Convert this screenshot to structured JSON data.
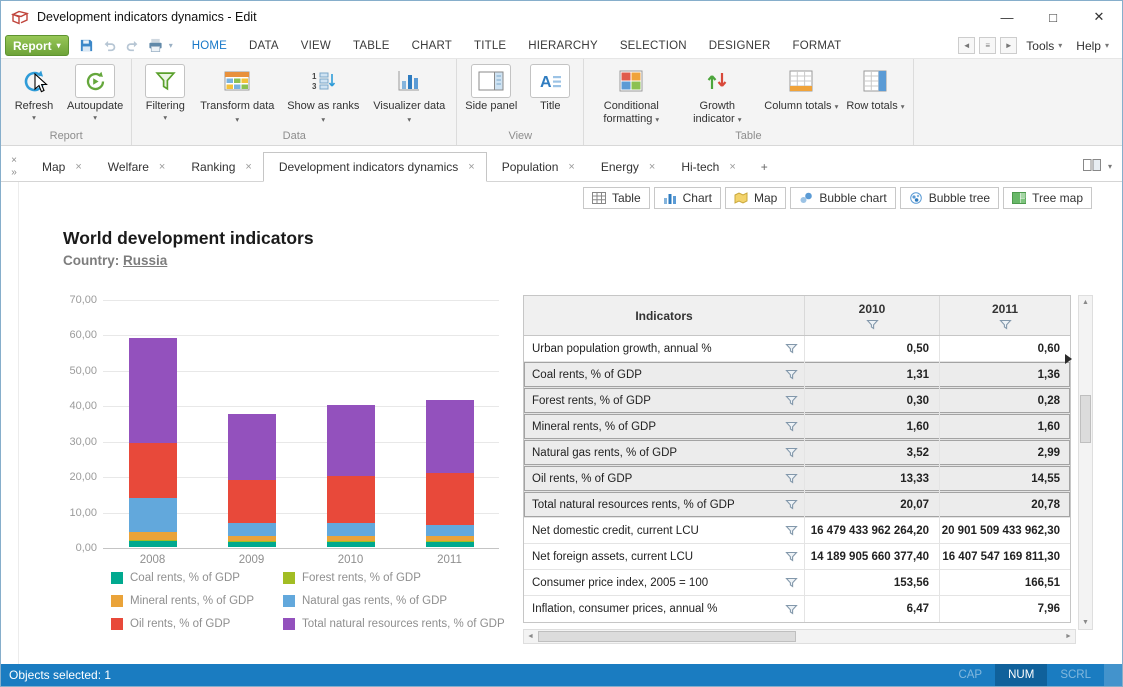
{
  "window": {
    "title": "Development indicators dynamics - Edit"
  },
  "icons": {
    "dropdown": "▾",
    "close": "×",
    "chevrons": "»",
    "back": "◄",
    "forward": "►",
    "list": "≡",
    "minimize": "—",
    "maximize": "□",
    "window_close": "✕",
    "scroll_up": "▲",
    "scroll_down": "▼",
    "scroll_left": "◄",
    "scroll_right": "►"
  },
  "menu": {
    "report_label": "Report",
    "tabs": [
      {
        "label": "HOME",
        "active": true
      },
      {
        "label": "DATA"
      },
      {
        "label": "VIEW"
      },
      {
        "label": "TABLE"
      },
      {
        "label": "CHART"
      },
      {
        "label": "TITLE"
      },
      {
        "label": "HIERARCHY"
      },
      {
        "label": "SELECTION"
      },
      {
        "label": "DESIGNER"
      },
      {
        "label": "FORMAT"
      }
    ],
    "tools_label": "Tools",
    "help_label": "Help"
  },
  "ribbon_groups": [
    {
      "label": "Report",
      "buttons": [
        {
          "label": "Refresh",
          "icon": "refresh-icon",
          "dropdown": true,
          "dd_below": true
        },
        {
          "label": "Autoupdate",
          "icon": "autoupdate-icon",
          "dropdown": true,
          "dd_below": true,
          "boxed": true
        }
      ]
    },
    {
      "label": "Data",
      "buttons": [
        {
          "label": "Filtering",
          "icon": "filtering-icon",
          "dropdown": true,
          "dd_below": true,
          "boxed": true
        },
        {
          "label": "Transform data",
          "icon": "transform-data-icon",
          "dropdown": true
        },
        {
          "label": "Show as ranks",
          "icon": "show-as-ranks-icon",
          "dropdown": true
        },
        {
          "label": "Visualizer data",
          "icon": "visualizer-data-icon",
          "dropdown": true
        }
      ]
    },
    {
      "label": "View",
      "buttons": [
        {
          "label": "Side panel",
          "icon": "side-panel-icon",
          "boxed": true
        },
        {
          "label": "Title",
          "icon": "title-icon",
          "boxed": true
        }
      ]
    },
    {
      "label": "Table",
      "buttons": [
        {
          "label": "Conditional formatting",
          "icon": "conditional-formatting-icon",
          "dropdown": true
        },
        {
          "label": "Growth indicator",
          "icon": "growth-indicator-icon",
          "dropdown": true
        },
        {
          "label": "Column totals",
          "icon": "column-totals-icon",
          "dropdown": true
        },
        {
          "label": "Row totals",
          "icon": "row-totals-icon",
          "dropdown": true
        }
      ]
    }
  ],
  "sheet_tabs": {
    "tabs": [
      {
        "label": "Map"
      },
      {
        "label": "Welfare"
      },
      {
        "label": "Ranking"
      },
      {
        "label": "Development indicators dynamics",
        "active": true
      },
      {
        "label": "Population"
      },
      {
        "label": "Energy"
      },
      {
        "label": "Hi-tech"
      }
    ],
    "add_label": "+"
  },
  "view_switcher": [
    {
      "label": "Table",
      "icon": "table-view-icon"
    },
    {
      "label": "Chart",
      "icon": "chart-view-icon"
    },
    {
      "label": "Map",
      "icon": "map-view-icon"
    },
    {
      "label": "Bubble chart",
      "icon": "bubble-chart-view-icon"
    },
    {
      "label": "Bubble tree",
      "icon": "bubble-tree-view-icon"
    },
    {
      "label": "Tree map",
      "icon": "tree-map-view-icon"
    }
  ],
  "report": {
    "title": "World development indicators",
    "country_label": "Country:",
    "country_value": "Russia"
  },
  "chart_data": {
    "type": "bar",
    "stacked": true,
    "title": "",
    "xlabel": "",
    "ylabel": "",
    "categories": [
      "2008",
      "2009",
      "2010",
      "2011"
    ],
    "series": [
      {
        "name": "Coal rents, % of GDP",
        "color": "#00a98f",
        "values": [
          1.7,
          1.3,
          1.31,
          1.36
        ]
      },
      {
        "name": "Forest rents, % of GDP",
        "color": "#a2bd24",
        "values": [
          0.3,
          0.4,
          0.3,
          0.28
        ]
      },
      {
        "name": "Mineral rents, % of GDP",
        "color": "#eaa339",
        "values": [
          2.2,
          1.4,
          1.6,
          1.6
        ]
      },
      {
        "name": "Natural gas rents, % of GDP",
        "color": "#62a8dc",
        "values": [
          9.6,
          3.6,
          3.52,
          2.99
        ]
      },
      {
        "name": "Oil rents, % of GDP",
        "color": "#e8493a",
        "values": [
          15.7,
          12.1,
          13.33,
          14.55
        ]
      },
      {
        "name": "Total natural resources rents, % of GDP",
        "color": "#9351bd",
        "values": [
          29.5,
          18.7,
          20.07,
          20.78
        ]
      }
    ],
    "ylim": [
      0,
      70
    ],
    "ytick_step": 10,
    "ytick_labels": [
      "0,00",
      "10,00",
      "20,00",
      "30,00",
      "40,00",
      "50,00",
      "60,00",
      "70,00"
    ],
    "grid": true,
    "legend_position": "bottom"
  },
  "table": {
    "columns": [
      "Indicators",
      "2010",
      "2011"
    ],
    "rows": [
      {
        "indicator": "Urban population growth, annual %",
        "v2010": "0,50",
        "v2011": "0,60",
        "selected": false
      },
      {
        "indicator": "Coal rents, % of GDP",
        "v2010": "1,31",
        "v2011": "1,36",
        "selected": true
      },
      {
        "indicator": "Forest rents, % of GDP",
        "v2010": "0,30",
        "v2011": "0,28",
        "selected": true
      },
      {
        "indicator": "Mineral rents, % of GDP",
        "v2010": "1,60",
        "v2011": "1,60",
        "selected": true
      },
      {
        "indicator": "Natural gas rents, % of GDP",
        "v2010": "3,52",
        "v2011": "2,99",
        "selected": true
      },
      {
        "indicator": "Oil rents, % of GDP",
        "v2010": "13,33",
        "v2011": "14,55",
        "selected": true
      },
      {
        "indicator": "Total natural resources rents, % of GDP",
        "v2010": "20,07",
        "v2011": "20,78",
        "selected": true
      },
      {
        "indicator": "Net domestic credit, current LCU",
        "v2010": "16 479 433 962 264,20",
        "v2011": "20 901 509 433 962,30",
        "selected": false
      },
      {
        "indicator": "Net foreign assets, current LCU",
        "v2010": "14 189 905 660 377,40",
        "v2011": "16 407 547 169 811,30",
        "selected": false
      },
      {
        "indicator": "Consumer price index, 2005 = 100",
        "v2010": "153,56",
        "v2011": "166,51",
        "selected": false
      },
      {
        "indicator": "Inflation, consumer prices, annual %",
        "v2010": "6,47",
        "v2011": "7,96",
        "selected": false
      }
    ]
  },
  "status_bar": {
    "left": "Objects selected: 1",
    "indicators": [
      {
        "label": "CAP",
        "active": false
      },
      {
        "label": "NUM",
        "active": true
      },
      {
        "label": "SCRL",
        "active": false
      }
    ]
  }
}
